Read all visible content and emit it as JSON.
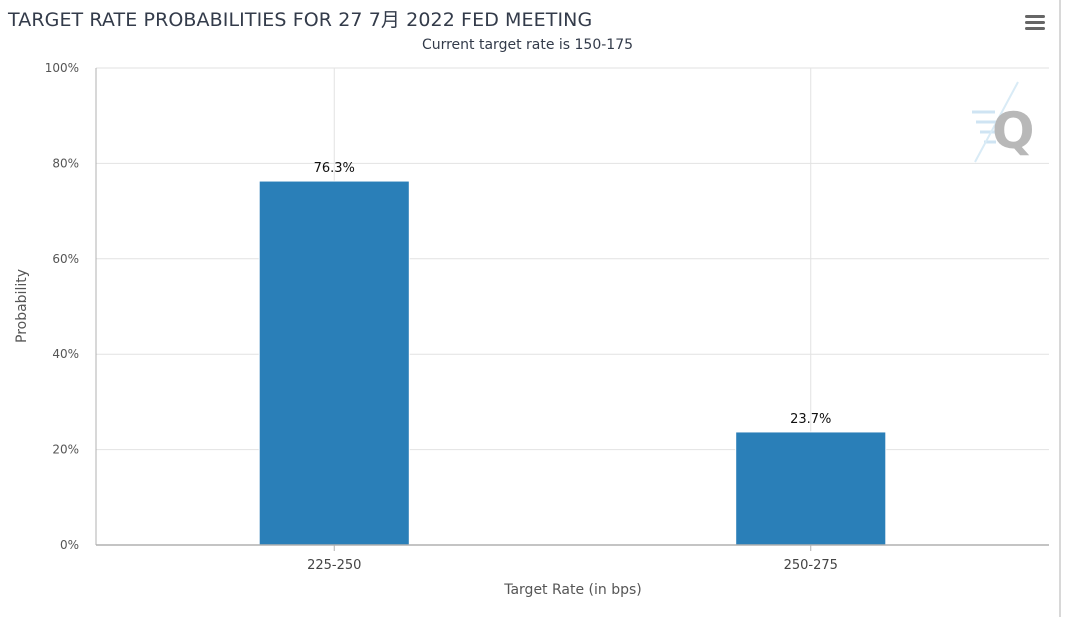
{
  "header": {
    "title": "TARGET RATE PROBABILITIES FOR 27 7月 2022 FED MEETING",
    "subtitle": "Current target rate is 150-175"
  },
  "toolbar": {
    "menu_icon": "hamburger-menu-icon"
  },
  "watermark": {
    "logo": "Q",
    "icon": "quikstrike-logo-icon"
  },
  "colors": {
    "bar": "#2a7fb8",
    "grid": "#e2e2e2",
    "axis": "#b0b0b0",
    "watermark": "#b8b8b8"
  },
  "chart_data": {
    "type": "bar",
    "title": "TARGET RATE PROBABILITIES FOR 27 7月 2022 FED MEETING",
    "subtitle": "Current target rate is 150-175",
    "xlabel": "Target Rate (in bps)",
    "ylabel": "Probability",
    "categories": [
      "225-250",
      "250-275"
    ],
    "values": [
      76.3,
      23.7
    ],
    "data_labels": [
      "76.3%",
      "23.7%"
    ],
    "ylim": [
      0,
      100
    ],
    "yticks": [
      0,
      20,
      40,
      60,
      80,
      100
    ],
    "ytick_labels": [
      "0%",
      "20%",
      "40%",
      "60%",
      "80%",
      "100%"
    ],
    "grid": true,
    "legend": "none"
  }
}
